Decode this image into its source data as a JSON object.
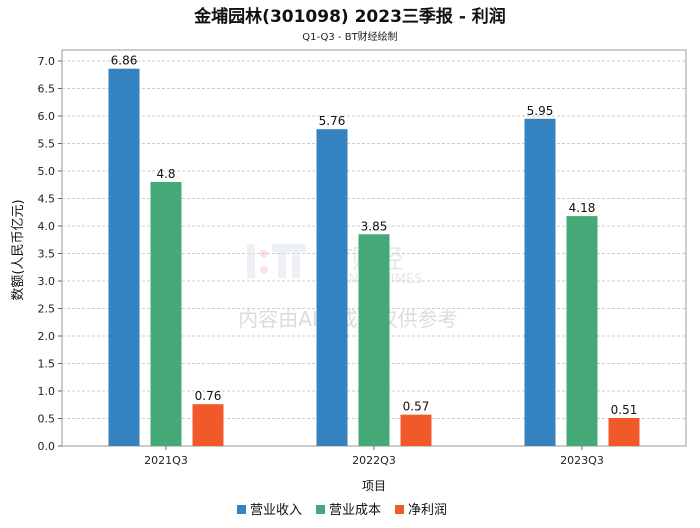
{
  "chart_data": {
    "type": "bar",
    "title": "金埔园林(301098) 2023三季报 - 利润",
    "subtitle": "Q1-Q3 - BT财经绘制",
    "xlabel": "项目",
    "ylabel": "数额(人民币亿元)",
    "categories": [
      "2021Q3",
      "2022Q3",
      "2023Q3"
    ],
    "series": [
      {
        "name": "营业收入",
        "color": "#3582c0",
        "values": [
          6.86,
          5.76,
          5.95
        ]
      },
      {
        "name": "营业成本",
        "color": "#44a877",
        "values": [
          4.8,
          3.85,
          4.18
        ]
      },
      {
        "name": "净利润",
        "color": "#f05a28",
        "values": [
          0.76,
          0.57,
          0.51
        ]
      }
    ],
    "ylim": [
      0,
      7.2
    ],
    "yticks": [
      "0.0",
      "0.5",
      "1.0",
      "1.5",
      "2.0",
      "2.5",
      "3.0",
      "3.5",
      "4.0",
      "4.5",
      "5.0",
      "5.5",
      "6.0",
      "6.5",
      "7.0"
    ],
    "grid": true,
    "legend": "bottom-center"
  },
  "watermark": {
    "brand": "BT财经",
    "brand_en": "BUSINESSTIMES",
    "notice": "内容由AI生成，仅供参考"
  }
}
